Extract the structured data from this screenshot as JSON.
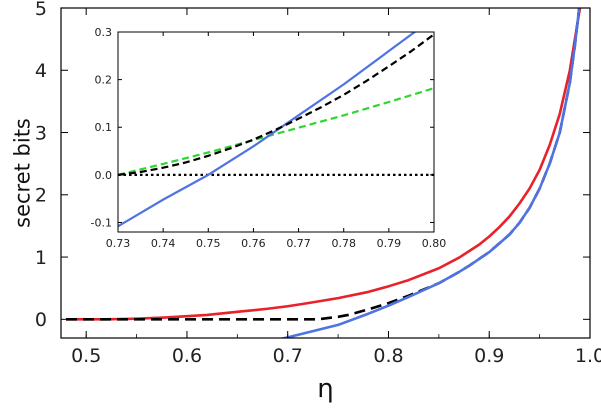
{
  "chart_data": [
    {
      "type": "line",
      "xlabel": "η",
      "ylabel": "secret bits",
      "xlim": [
        0.475,
        1.0
      ],
      "ylim": [
        -0.3,
        5.0
      ],
      "xticks": [
        "0.5",
        "0.6",
        "0.7",
        "0.8",
        "0.9",
        "1.0"
      ],
      "yticks": [
        "0",
        "1",
        "2",
        "3",
        "4",
        "5"
      ],
      "series": [
        {
          "color": "#e8212a",
          "style": "solid",
          "x": [
            0.48,
            0.5,
            0.52,
            0.55,
            0.58,
            0.6,
            0.62,
            0.65,
            0.68,
            0.7,
            0.72,
            0.75,
            0.78,
            0.8,
            0.82,
            0.85,
            0.87,
            0.89,
            0.9,
            0.91,
            0.92,
            0.93,
            0.94,
            0.95,
            0.96,
            0.97,
            0.98,
            0.985,
            0.99,
            0.993
          ],
          "y": [
            0.0,
            0.0,
            0.0,
            0.01,
            0.03,
            0.05,
            0.07,
            0.12,
            0.17,
            0.21,
            0.26,
            0.34,
            0.44,
            0.53,
            0.63,
            0.82,
            0.99,
            1.2,
            1.33,
            1.48,
            1.65,
            1.86,
            2.1,
            2.4,
            2.8,
            3.3,
            4.0,
            4.5,
            5.0,
            5.3
          ]
        },
        {
          "color": "#000000",
          "style": "dashed",
          "x": [
            0.48,
            0.55,
            0.6,
            0.65,
            0.7,
            0.73,
            0.75,
            0.76,
            0.78,
            0.8,
            0.82,
            0.85,
            0.87,
            0.88,
            0.9,
            0.92,
            0.93,
            0.94,
            0.95,
            0.96,
            0.97,
            0.98,
            0.985,
            0.99,
            0.993
          ],
          "y": [
            0.0,
            0.0,
            0.0,
            0.0,
            0.0,
            0.0,
            0.04,
            0.07,
            0.16,
            0.26,
            0.38,
            0.58,
            0.76,
            0.86,
            1.08,
            1.36,
            1.55,
            1.79,
            2.1,
            2.5,
            3.0,
            3.8,
            4.4,
            5.1,
            5.5
          ]
        },
        {
          "color": "#4f73e3",
          "style": "solid",
          "x": [
            0.68,
            0.7,
            0.72,
            0.75,
            0.78,
            0.8,
            0.82,
            0.85,
            0.87,
            0.88,
            0.9,
            0.92,
            0.93,
            0.94,
            0.95,
            0.96,
            0.97,
            0.98,
            0.985,
            0.99,
            0.993
          ],
          "y": [
            -0.36,
            -0.29,
            -0.21,
            -0.09,
            0.09,
            0.22,
            0.36,
            0.58,
            0.76,
            0.86,
            1.08,
            1.36,
            1.55,
            1.79,
            2.1,
            2.5,
            3.0,
            3.8,
            4.4,
            5.1,
            5.5
          ]
        }
      ]
    },
    {
      "type": "line",
      "xlim": [
        0.73,
        0.8
      ],
      "ylim": [
        -0.12,
        0.3
      ],
      "xticks": [
        "0.73",
        "0.74",
        "0.75",
        "0.76",
        "0.77",
        "0.78",
        "0.79",
        "0.80"
      ],
      "yticks": [
        "-0.1",
        "0.0",
        "0.1",
        "0.2",
        "0.3"
      ],
      "series": [
        {
          "color": "#000000",
          "style": "dotted",
          "x": [
            0.73,
            0.8
          ],
          "y": [
            0.0,
            0.0
          ]
        },
        {
          "color": "#2fd62f",
          "style": "dashed",
          "x": [
            0.73,
            0.74,
            0.75,
            0.76,
            0.77,
            0.78,
            0.79,
            0.8
          ],
          "y": [
            0.0,
            0.023,
            0.047,
            0.073,
            0.099,
            0.125,
            0.153,
            0.182
          ]
        },
        {
          "color": "#4f73e3",
          "style": "solid",
          "x": [
            0.73,
            0.74,
            0.75,
            0.76,
            0.77,
            0.78,
            0.79,
            0.8
          ],
          "y": [
            -0.108,
            -0.052,
            0.0,
            0.06,
            0.125,
            0.19,
            0.26,
            0.33
          ]
        },
        {
          "color": "#000000",
          "style": "dashed",
          "x": [
            0.73,
            0.735,
            0.74,
            0.745,
            0.75,
            0.755,
            0.76,
            0.765,
            0.77,
            0.775,
            0.78,
            0.785,
            0.79,
            0.795,
            0.8
          ],
          "y": [
            0.0,
            0.006,
            0.015,
            0.026,
            0.04,
            0.056,
            0.074,
            0.095,
            0.118,
            0.142,
            0.168,
            0.197,
            0.228,
            0.26,
            0.295
          ]
        }
      ]
    }
  ]
}
